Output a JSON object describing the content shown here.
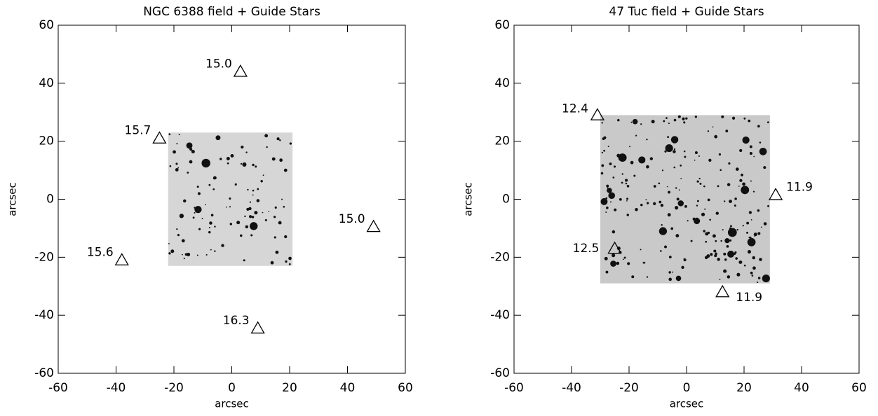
{
  "chart_data": [
    {
      "type": "scatter",
      "title": "NGC 6388 field  + Guide Stars",
      "x_label": "arcsec",
      "y_label": "arcsec",
      "xlim": [
        -60,
        60
      ],
      "ylim": [
        -60,
        60
      ],
      "xticks": [
        -60,
        -40,
        -20,
        0,
        20,
        40,
        60
      ],
      "yticks": [
        -60,
        -40,
        -20,
        0,
        20,
        40,
        60
      ],
      "x": [
        3,
        -25,
        49,
        -38,
        9
      ],
      "y": [
        44,
        21,
        -9.5,
        -21,
        -44.5
      ],
      "point_labels": [
        "15.0",
        "15.7",
        "15.0",
        "15.6",
        "16.3"
      ],
      "image_extent": {
        "x": [
          -22,
          21
        ],
        "y": [
          -23,
          23
        ]
      },
      "color": "#000000"
    },
    {
      "type": "scatter",
      "title": "47 Tuc field  + Guide Stars",
      "x_label": "arcsec",
      "y_label": "arcsec",
      "xlim": [
        -60,
        60
      ],
      "ylim": [
        -60,
        60
      ],
      "xticks": [
        -60,
        -40,
        -20,
        0,
        20,
        40,
        60
      ],
      "yticks": [
        -60,
        -40,
        -20,
        0,
        20,
        40,
        60
      ],
      "x": [
        -31,
        31,
        -25,
        12.5
      ],
      "y": [
        29,
        1.5,
        -17,
        -32
      ],
      "point_labels": [
        "12.4",
        "11.9",
        "12.5",
        "11.9"
      ],
      "image_extent": {
        "x": [
          -30,
          29
        ],
        "y": [
          -29,
          29
        ]
      },
      "color": "#000000"
    }
  ]
}
